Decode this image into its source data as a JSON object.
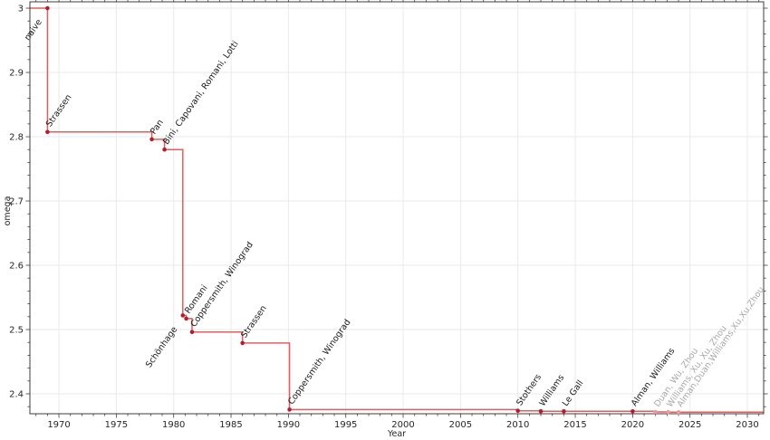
{
  "chart_data": {
    "type": "line",
    "subtype": "step-post",
    "title": "",
    "xlabel": "Year",
    "ylabel": "omega",
    "grid": true,
    "legend": "none",
    "x_range": [
      1967.47,
      2031.42
    ],
    "y_range": [
      2.369,
      3.0099
    ],
    "x_ticks": [
      1970,
      1975,
      1980,
      1985,
      1990,
      1995,
      2000,
      2005,
      2010,
      2015,
      2020,
      2025,
      2030
    ],
    "y_ticks": [
      2.4,
      2.5,
      2.6,
      2.7,
      2.8,
      2.9,
      3
    ],
    "x_minor_step": 1,
    "y_minor_step": 0.02,
    "colors": {
      "line": "#e25d5d",
      "marker": "#b01f30",
      "marker_faded": "#f0959d",
      "label": "#1a1a1a",
      "label_faded": "#a8a8a8",
      "grid": "#eaeaea",
      "spine": "#3c3c3c",
      "tick": "#3c3c3c",
      "tick_label": "#262626"
    },
    "points": [
      {
        "year": 1969,
        "omega": 3.0,
        "label": "naive",
        "label_side": "below",
        "faded": false
      },
      {
        "year": 1969,
        "omega": 2.8074,
        "label": "Strassen",
        "label_side": "above",
        "faded": false
      },
      {
        "year": 1978.1,
        "omega": 2.796,
        "label": "Pan",
        "label_side": "above",
        "faded": false
      },
      {
        "year": 1979.2,
        "omega": 2.78,
        "label": "Bini, Capovani, Romani, Lotti",
        "label_side": "above",
        "faded": false
      },
      {
        "year": 1980.8,
        "omega": 2.522,
        "label": "Schönhage",
        "label_side": "below",
        "faded": false
      },
      {
        "year": 1981.1,
        "omega": 2.517,
        "label": "Romani",
        "label_side": "above",
        "faded": false
      },
      {
        "year": 1981.6,
        "omega": 2.496,
        "label": "Coppersmith, Winograd",
        "label_side": "above",
        "faded": false
      },
      {
        "year": 1986,
        "omega": 2.479,
        "label": "Strassen",
        "label_side": "above",
        "faded": false
      },
      {
        "year": 1990.1,
        "omega": 2.3755,
        "label": "Coppersmith, Winograd",
        "label_side": "above",
        "faded": false
      },
      {
        "year": 2010,
        "omega": 2.3737,
        "label": "Stothers",
        "label_side": "above",
        "faded": false
      },
      {
        "year": 2012,
        "omega": 2.3729,
        "label": "Williams",
        "label_side": "above",
        "faded": false
      },
      {
        "year": 2014,
        "omega": 2.37286,
        "label": "Le Gall",
        "label_side": "above",
        "faded": false
      },
      {
        "year": 2020,
        "omega": 2.37286,
        "label": "Alman, Williams",
        "label_side": "above",
        "faded": false
      },
      {
        "year": 2022,
        "omega": 2.37187,
        "label": "Duan, Wu, Zhou",
        "label_side": "above",
        "faded": true
      },
      {
        "year": 2023.1,
        "omega": 2.37155,
        "label": "Williams, Xu, Xu, Zhou",
        "label_side": "above",
        "faded": true
      },
      {
        "year": 2024,
        "omega": 2.37134,
        "label": "Alman,Duan,Williams,Xu,Xu,Zhou",
        "label_side": "above",
        "faded": true
      }
    ]
  }
}
